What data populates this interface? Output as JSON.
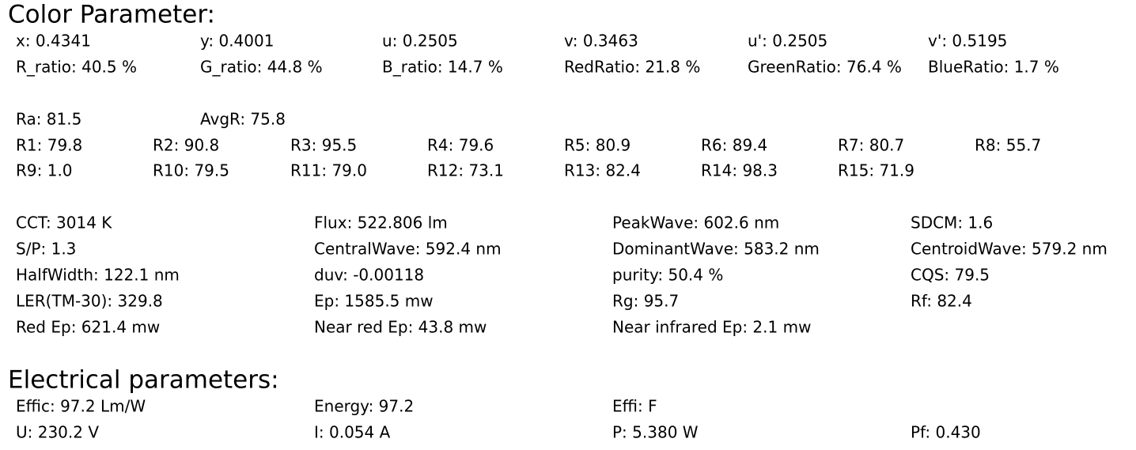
{
  "sections": [
    {
      "title": "Color Parameter:",
      "groups": [
        {
          "rows": [
            [
              "x: 0.4341",
              "y: 0.4001",
              "u: 0.2505",
              "v: 0.3463",
              "u': 0.2505",
              "v': 0.5195"
            ],
            [
              "R_ratio: 40.5 %",
              "G_ratio: 44.8 %",
              "B_ratio: 14.7 %",
              "RedRatio: 21.8 %",
              "GreenRatio: 76.4 %",
              "BlueRatio: 1.7 %"
            ]
          ]
        },
        {
          "rows": [
            [
              "Ra: 81.5",
              "AvgR: 75.8"
            ]
          ]
        },
        {
          "rows": [
            [
              "R1: 79.8",
              "R2: 90.8",
              "R3: 95.5",
              "R4: 79.6",
              "R5: 80.9",
              "R6: 89.4",
              "R7: 80.7",
              "R8: 55.7"
            ],
            [
              "R9: 1.0",
              "R10: 79.5",
              "R11: 79.0",
              "R12: 73.1",
              "R13: 82.4",
              "R14: 98.3",
              "R15: 71.9"
            ]
          ]
        },
        {
          "rows": [
            [
              "CCT: 3014 K",
              "Flux: 522.806 lm",
              "PeakWave: 602.6 nm",
              "SDCM: 1.6"
            ],
            [
              "S/P: 1.3",
              "CentralWave: 592.4 nm",
              "DominantWave: 583.2 nm",
              "CentroidWave: 579.2 nm"
            ],
            [
              "HalfWidth: 122.1 nm",
              "duv: -0.00118",
              "purity: 50.4 %",
              "CQS: 79.5"
            ],
            [
              "LER(TM-30): 329.8",
              "Ep: 1585.5 mw",
              "Rg: 95.7",
              "Rf: 82.4"
            ],
            [
              "Red Ep: 621.4 mw",
              "Near red Ep: 43.8 mw",
              "Near infrared Ep: 2.1 mw"
            ]
          ]
        }
      ]
    },
    {
      "title": "Electrical parameters:",
      "groups": [
        {
          "rows": [
            [
              "Effic: 97.2 Lm/W",
              "Energy: 97.2",
              "Effi: F"
            ],
            [
              "U: 230.2 V",
              "I: 0.054 A",
              "P: 5.380 W",
              "Pf: 0.430"
            ]
          ]
        }
      ]
    }
  ]
}
